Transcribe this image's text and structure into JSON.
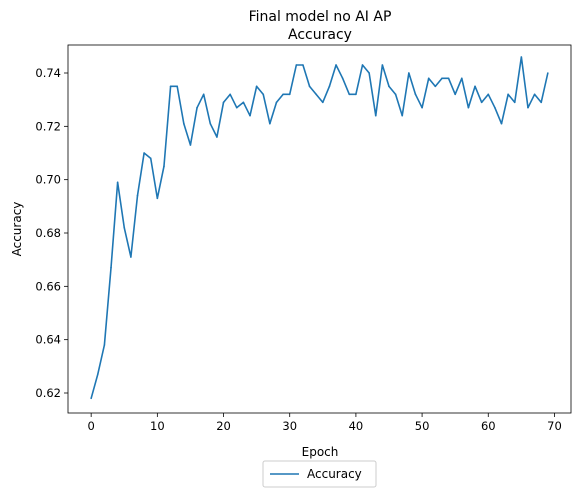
{
  "chart_data": {
    "type": "line",
    "title": "Final model no AI AP",
    "subtitle": "Accuracy",
    "xlabel": "Epoch",
    "ylabel": "Accuracy",
    "xlim": [
      -3.5,
      72.5
    ],
    "ylim": [
      0.6125,
      0.7505
    ],
    "xticks": [
      0,
      10,
      20,
      30,
      40,
      50,
      60,
      70
    ],
    "yticks": [
      0.62,
      0.64,
      0.66,
      0.68,
      0.7,
      0.72,
      0.74
    ],
    "ytick_labels": [
      "0.62",
      "0.64",
      "0.66",
      "0.68",
      "0.70",
      "0.72",
      "0.74"
    ],
    "legend_position": "bottom-center",
    "grid": false,
    "series": [
      {
        "name": "Accuracy",
        "color": "#1f77b4",
        "x": [
          0,
          1,
          2,
          3,
          4,
          5,
          6,
          7,
          8,
          9,
          10,
          11,
          12,
          13,
          14,
          15,
          16,
          17,
          18,
          19,
          20,
          21,
          22,
          23,
          24,
          25,
          26,
          27,
          28,
          29,
          30,
          31,
          32,
          33,
          34,
          35,
          36,
          37,
          38,
          39,
          40,
          41,
          42,
          43,
          44,
          45,
          46,
          47,
          48,
          49,
          50,
          51,
          52,
          53,
          54,
          55,
          56,
          57,
          58,
          59,
          60,
          61,
          62,
          63,
          64,
          65,
          66,
          67,
          68,
          69
        ],
        "values": [
          0.618,
          0.627,
          0.638,
          0.667,
          0.699,
          0.682,
          0.671,
          0.694,
          0.71,
          0.708,
          0.693,
          0.705,
          0.735,
          0.735,
          0.721,
          0.713,
          0.727,
          0.732,
          0.721,
          0.716,
          0.729,
          0.732,
          0.727,
          0.729,
          0.724,
          0.735,
          0.732,
          0.721,
          0.729,
          0.732,
          0.732,
          0.743,
          0.743,
          0.735,
          0.732,
          0.729,
          0.735,
          0.743,
          0.738,
          0.732,
          0.732,
          0.743,
          0.74,
          0.724,
          0.743,
          0.735,
          0.732,
          0.724,
          0.74,
          0.732,
          0.727,
          0.738,
          0.735,
          0.738,
          0.738,
          0.732,
          0.738,
          0.727,
          0.735,
          0.729,
          0.732,
          0.727,
          0.721,
          0.732,
          0.729,
          0.746,
          0.727,
          0.732,
          0.729,
          0.74
        ]
      }
    ]
  }
}
